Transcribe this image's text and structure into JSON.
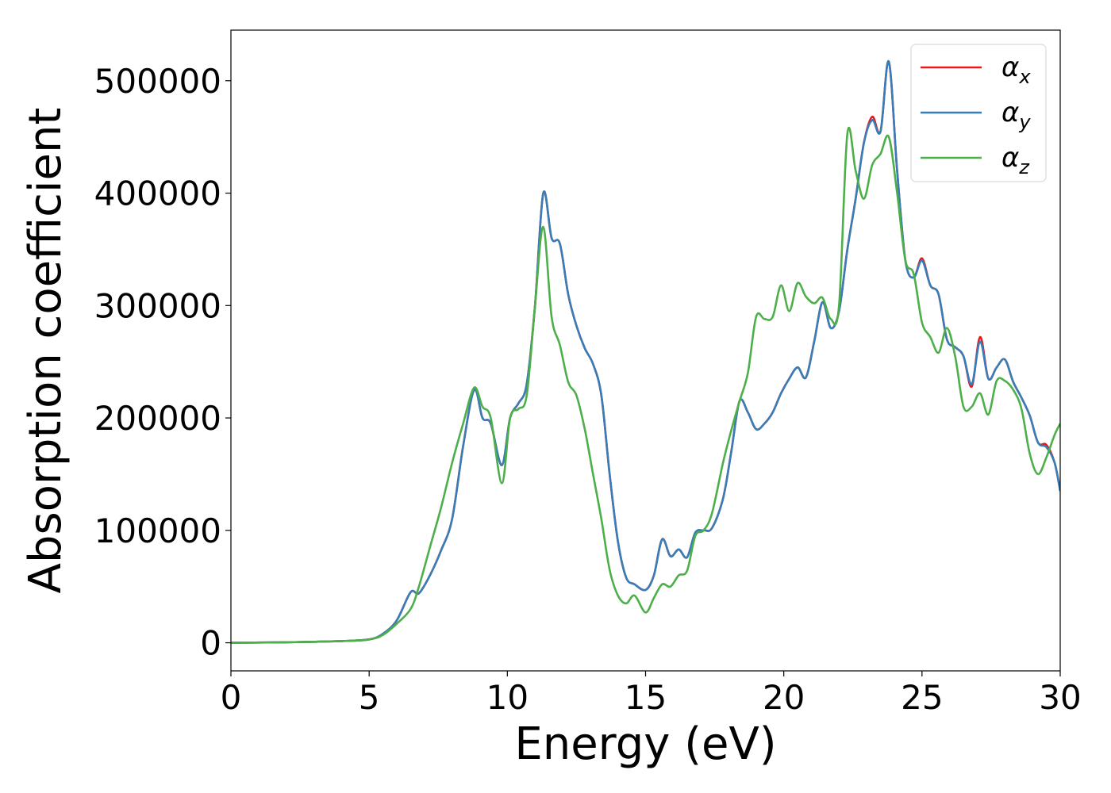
{
  "chart_data": {
    "type": "line",
    "xlabel": "Energy (eV)",
    "ylabel": "Absorption coefficient",
    "xlim": [
      0,
      30
    ],
    "ylim": [
      -25000,
      545000
    ],
    "xticks": [
      0,
      5,
      10,
      15,
      20,
      25,
      30
    ],
    "xtick_labels": [
      "0",
      "5",
      "10",
      "15",
      "20",
      "25",
      "30"
    ],
    "yticks": [
      0,
      100000,
      200000,
      300000,
      400000,
      500000
    ],
    "ytick_labels": [
      "0",
      "100000",
      "200000",
      "300000",
      "400000",
      "500000"
    ],
    "grid": false,
    "legend_position": "top-right",
    "series": [
      {
        "name": "αx",
        "legend_base": "α",
        "legend_sub": "x",
        "color": "#e41a1c",
        "x": [
          0,
          2,
          4,
          5,
          5.5,
          6,
          6.5,
          6.8,
          7.2,
          7.6,
          8,
          8.4,
          8.8,
          9.1,
          9.4,
          9.8,
          10.1,
          10.4,
          10.7,
          11,
          11.3,
          11.6,
          11.9,
          12.2,
          12.5,
          12.8,
          13.1,
          13.4,
          13.7,
          14,
          14.3,
          14.6,
          15,
          15.3,
          15.6,
          15.9,
          16.2,
          16.5,
          16.8,
          17.1,
          17.4,
          17.8,
          18.1,
          18.4,
          18.7,
          19,
          19.3,
          19.6,
          19.9,
          20.2,
          20.5,
          20.8,
          21.1,
          21.4,
          21.7,
          22,
          22.3,
          22.6,
          22.9,
          23.2,
          23.5,
          23.8,
          24.1,
          24.4,
          24.7,
          25,
          25.3,
          25.6,
          25.9,
          26.2,
          26.5,
          26.8,
          27.1,
          27.4,
          27.7,
          28,
          28.3,
          28.6,
          28.9,
          29.2,
          29.5,
          29.8,
          30
        ],
        "y": [
          0,
          500,
          1500,
          3000,
          8000,
          20000,
          45000,
          44000,
          60000,
          82000,
          110000,
          175000,
          225000,
          200000,
          195000,
          158000,
          200000,
          213000,
          230000,
          300000,
          400000,
          360000,
          355000,
          310000,
          282000,
          262000,
          248000,
          220000,
          150000,
          90000,
          58000,
          52000,
          47000,
          60000,
          92000,
          77000,
          83000,
          76000,
          98000,
          100000,
          102000,
          128000,
          170000,
          215000,
          205000,
          190000,
          195000,
          205000,
          222000,
          235000,
          245000,
          236000,
          268000,
          303000,
          280000,
          295000,
          350000,
          395000,
          445000,
          468000,
          455000,
          517000,
          420000,
          340000,
          325000,
          342000,
          318000,
          310000,
          270000,
          263000,
          255000,
          228000,
          272000,
          235000,
          245000,
          252000,
          232000,
          218000,
          202000,
          178000,
          176000,
          160000,
          135000
        ]
      },
      {
        "name": "αy",
        "legend_base": "α",
        "legend_sub": "y",
        "color": "#377eb8",
        "x": [
          0,
          2,
          4,
          5,
          5.5,
          6,
          6.5,
          6.8,
          7.2,
          7.6,
          8,
          8.4,
          8.8,
          9.1,
          9.4,
          9.8,
          10.1,
          10.4,
          10.7,
          11,
          11.3,
          11.6,
          11.9,
          12.2,
          12.5,
          12.8,
          13.1,
          13.4,
          13.7,
          14,
          14.3,
          14.6,
          15,
          15.3,
          15.6,
          15.9,
          16.2,
          16.5,
          16.8,
          17.1,
          17.4,
          17.8,
          18.1,
          18.4,
          18.7,
          19,
          19.3,
          19.6,
          19.9,
          20.2,
          20.5,
          20.8,
          21.1,
          21.4,
          21.7,
          22,
          22.3,
          22.6,
          22.9,
          23.2,
          23.5,
          23.8,
          24.1,
          24.4,
          24.7,
          25,
          25.3,
          25.6,
          25.9,
          26.2,
          26.5,
          26.8,
          27.1,
          27.4,
          27.7,
          28,
          28.3,
          28.6,
          28.9,
          29.2,
          29.5,
          29.8,
          30
        ],
        "y": [
          0,
          500,
          1500,
          3000,
          8000,
          20000,
          45000,
          44000,
          60000,
          82000,
          110000,
          175000,
          225000,
          200000,
          195000,
          158000,
          200000,
          213000,
          230000,
          300000,
          400000,
          360000,
          355000,
          310000,
          282000,
          262000,
          248000,
          220000,
          150000,
          90000,
          58000,
          52000,
          47000,
          60000,
          92000,
          77000,
          83000,
          76000,
          98000,
          100000,
          102000,
          128000,
          170000,
          215000,
          205000,
          190000,
          195000,
          205000,
          222000,
          235000,
          245000,
          236000,
          268000,
          303000,
          280000,
          295000,
          350000,
          395000,
          445000,
          465000,
          455000,
          517000,
          420000,
          340000,
          325000,
          340000,
          318000,
          310000,
          270000,
          263000,
          255000,
          230000,
          268000,
          235000,
          245000,
          252000,
          232000,
          218000,
          202000,
          178000,
          174000,
          160000,
          135000
        ]
      },
      {
        "name": "αz",
        "legend_base": "α",
        "legend_sub": "z",
        "color": "#4daf4a",
        "x": [
          0,
          2,
          4,
          5,
          5.5,
          6,
          6.5,
          6.8,
          7.2,
          7.6,
          8,
          8.4,
          8.8,
          9.1,
          9.4,
          9.8,
          10.1,
          10.4,
          10.7,
          11,
          11.3,
          11.6,
          11.9,
          12.2,
          12.5,
          12.8,
          13.1,
          13.4,
          13.7,
          14,
          14.3,
          14.6,
          15,
          15.3,
          15.6,
          15.9,
          16.2,
          16.5,
          16.8,
          17.1,
          17.4,
          17.8,
          18.1,
          18.4,
          18.7,
          19,
          19.3,
          19.6,
          19.9,
          20.2,
          20.5,
          20.8,
          21.1,
          21.4,
          21.7,
          22,
          22.3,
          22.6,
          22.9,
          23.2,
          23.5,
          23.8,
          24.1,
          24.4,
          24.7,
          25,
          25.3,
          25.6,
          25.9,
          26.2,
          26.5,
          26.8,
          27.1,
          27.4,
          27.7,
          28,
          28.3,
          28.6,
          28.9,
          29.2,
          29.5,
          29.8,
          30
        ],
        "y": [
          0,
          500,
          1500,
          3000,
          7000,
          17000,
          30000,
          50000,
          85000,
          120000,
          160000,
          195000,
          227000,
          210000,
          200000,
          142000,
          200000,
          208000,
          220000,
          300000,
          370000,
          290000,
          265000,
          232000,
          220000,
          190000,
          150000,
          110000,
          65000,
          42000,
          35000,
          42000,
          27000,
          40000,
          52000,
          50000,
          60000,
          64000,
          95000,
          100000,
          115000,
          160000,
          189000,
          215000,
          240000,
          290000,
          288000,
          290000,
          318000,
          295000,
          320000,
          308000,
          302000,
          307000,
          288000,
          300000,
          453000,
          420000,
          395000,
          425000,
          435000,
          450000,
          400000,
          340000,
          328000,
          285000,
          272000,
          258000,
          280000,
          255000,
          210000,
          210000,
          222000,
          203000,
          233000,
          233000,
          225000,
          208000,
          168000,
          150000,
          165000,
          185000,
          195000
        ]
      }
    ]
  }
}
